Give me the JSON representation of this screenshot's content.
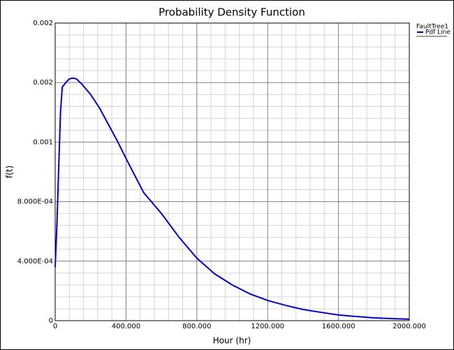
{
  "chart_data": {
    "type": "line",
    "title": "Probability Density Function",
    "x_label": "Hour (hr)",
    "y_label": "f(t)",
    "legend_title": "FaultTree1",
    "legend": "top-right",
    "grid": true,
    "minor_grid": true,
    "xlim": [
      0,
      2000
    ],
    "ylim": [
      0,
      0.002
    ],
    "xticks": [
      0,
      {
        "value": 400,
        "label": "400.000"
      },
      {
        "value": 800,
        "label": "800.000"
      },
      {
        "value": 1200,
        "label": "1200.000"
      },
      {
        "value": 1600,
        "label": "1600.000"
      },
      {
        "value": 2000,
        "label": "2000.000"
      }
    ],
    "yticks": [
      0,
      {
        "value": 0.0004,
        "label": "4.000E-04"
      },
      {
        "value": 0.0008,
        "label": "8.000E-04"
      },
      {
        "value": 0.0012,
        "label": "0.001"
      },
      {
        "value": 0.0016,
        "label": "0.002"
      },
      0.002
    ],
    "x": [
      0,
      10,
      20,
      30,
      40,
      60,
      80,
      100,
      120,
      150,
      200,
      250,
      300,
      350,
      400,
      500,
      600,
      700,
      800,
      900,
      1000,
      1100,
      1200,
      1300,
      1400,
      1500,
      1600,
      1700,
      1800,
      1900,
      2000
    ],
    "series": [
      {
        "name": "Pdf Line",
        "color": "#0000cc",
        "values": [
          0.00036,
          0.00065,
          0.00103,
          0.0014,
          0.00157,
          0.0016,
          0.001625,
          0.00163,
          0.001625,
          0.00159,
          0.00152,
          0.00143,
          0.00132,
          0.00121,
          0.00109,
          0.00086,
          0.00072,
          0.00056,
          0.00042,
          0.000315,
          0.00024,
          0.00018,
          0.000136,
          0.000103,
          7.5e-05,
          5.6e-05,
          3.8e-05,
          2.8e-05,
          1.9e-05,
          1.4e-05,
          1e-05
        ]
      }
    ]
  }
}
